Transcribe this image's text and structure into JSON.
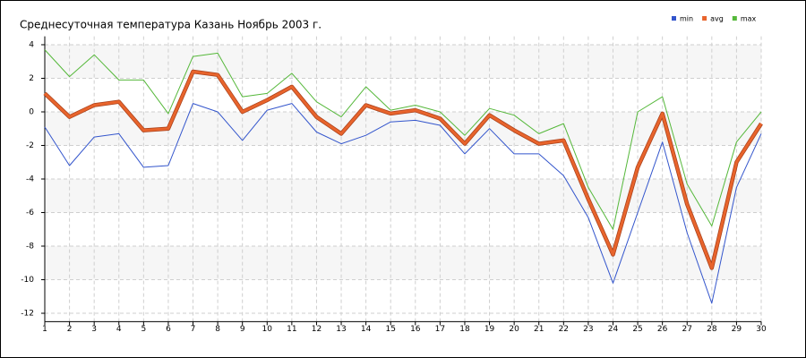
{
  "chart_data": {
    "type": "line",
    "title": "Среднесуточная температура Казань  Ноябрь 2003 г.",
    "x": [
      1,
      2,
      3,
      4,
      5,
      6,
      7,
      8,
      9,
      10,
      11,
      12,
      13,
      14,
      15,
      16,
      17,
      18,
      19,
      20,
      21,
      22,
      23,
      24,
      25,
      26,
      27,
      28,
      29,
      30
    ],
    "xlim": [
      1,
      30
    ],
    "xticks": [
      1,
      2,
      3,
      4,
      5,
      6,
      7,
      8,
      9,
      10,
      11,
      12,
      13,
      14,
      15,
      16,
      17,
      18,
      19,
      20,
      21,
      22,
      23,
      24,
      25,
      26,
      27,
      28,
      29,
      30
    ],
    "ylim": [
      -12.5,
      4.5
    ],
    "yticks": [
      -12,
      -10,
      -8,
      -6,
      -4,
      -2,
      0,
      2,
      4
    ],
    "grid": true,
    "legend": "top-right",
    "series": [
      {
        "name": "min",
        "color": "#3355cc",
        "values": [
          -0.9,
          -3.2,
          -1.5,
          -1.3,
          -3.3,
          -3.2,
          0.5,
          0,
          -1.7,
          0.1,
          0.5,
          -1.2,
          -1.9,
          -1.4,
          -0.6,
          -0.5,
          -0.8,
          -2.5,
          -1,
          -2.5,
          -2.5,
          -3.8,
          -6.3,
          -10.2,
          -6,
          -1.8,
          -7.2,
          -11.4,
          -4.5,
          -1.3
        ]
      },
      {
        "name": "avg",
        "color": "#e8642c",
        "values": [
          1.1,
          -0.3,
          0.4,
          0.6,
          -1.1,
          -1,
          2.4,
          2.2,
          0,
          0.7,
          1.5,
          -0.3,
          -1.3,
          0.4,
          -0.1,
          0.1,
          -0.4,
          -1.9,
          -0.2,
          -1.1,
          -1.9,
          -1.7,
          -5.2,
          -8.5,
          -3.3,
          -0.1,
          -5.5,
          -9.3,
          -3,
          -0.7
        ]
      },
      {
        "name": "max",
        "color": "#55b83a",
        "values": [
          3.7,
          2.1,
          3.4,
          1.9,
          1.9,
          -0.1,
          3.3,
          3.5,
          0.9,
          1.1,
          2.3,
          0.6,
          -0.3,
          1.5,
          0.1,
          0.4,
          0,
          -1.4,
          0.2,
          -0.2,
          -1.3,
          -0.7,
          -4.5,
          -7,
          0,
          0.9,
          -4.3,
          -6.8,
          -1.8,
          0
        ]
      }
    ]
  }
}
